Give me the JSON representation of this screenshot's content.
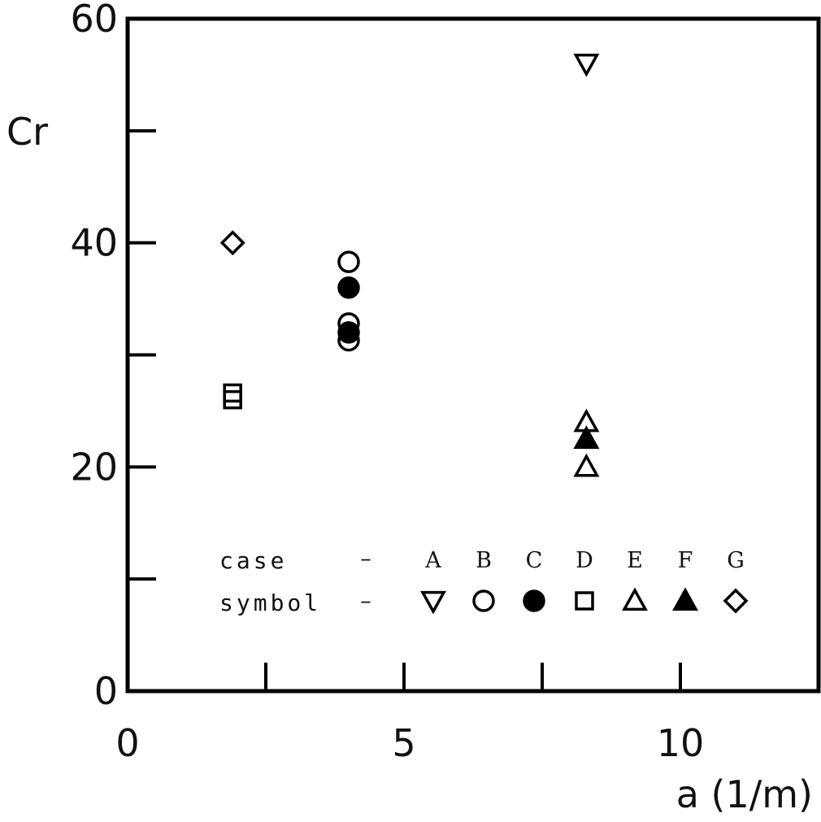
{
  "chart_data": {
    "type": "scatter",
    "title": "",
    "xlabel": "a (1/m)",
    "ylabel": "Cr",
    "xlim": [
      0,
      12.5
    ],
    "ylim": [
      0,
      60
    ],
    "x_ticks": [
      0,
      5,
      10
    ],
    "x_ticks_unlabeled": [
      2.5,
      7.5
    ],
    "y_ticks": [
      0,
      20,
      40,
      60
    ],
    "y_ticks_unlabeled": [
      10,
      30,
      50
    ],
    "x_tick_labels": [
      "0",
      "5",
      "10"
    ],
    "y_tick_labels": [
      "0",
      "20",
      "40",
      "60"
    ],
    "grid": false,
    "series": [
      {
        "name": "A",
        "marker": "triangle-down-open",
        "points": [
          {
            "x": 8.3,
            "y": 56
          }
        ]
      },
      {
        "name": "B",
        "marker": "circle-open",
        "points": [
          {
            "x": 4.0,
            "y": 38.3
          },
          {
            "x": 4.0,
            "y": 32.8
          },
          {
            "x": 4.0,
            "y": 31.3
          }
        ]
      },
      {
        "name": "C",
        "marker": "circle-filled",
        "points": [
          {
            "x": 4.0,
            "y": 36.0
          },
          {
            "x": 4.0,
            "y": 32.0
          }
        ]
      },
      {
        "name": "D",
        "marker": "square-open",
        "points": [
          {
            "x": 1.9,
            "y": 26.6
          },
          {
            "x": 1.9,
            "y": 26.0
          }
        ]
      },
      {
        "name": "E",
        "marker": "triangle-up-open",
        "points": [
          {
            "x": 8.3,
            "y": 24.0
          },
          {
            "x": 8.3,
            "y": 20.0
          }
        ]
      },
      {
        "name": "F",
        "marker": "triangle-up-filled",
        "points": [
          {
            "x": 8.3,
            "y": 22.5
          }
        ]
      },
      {
        "name": "G",
        "marker": "diamond-open",
        "points": [
          {
            "x": 1.9,
            "y": 40.0
          }
        ]
      }
    ],
    "legend": {
      "placement": "inside-bottom",
      "row1_label": "case",
      "row2_label": "symbol",
      "dash": "–",
      "cases": [
        "A",
        "B",
        "C",
        "D",
        "E",
        "F",
        "G"
      ]
    }
  }
}
